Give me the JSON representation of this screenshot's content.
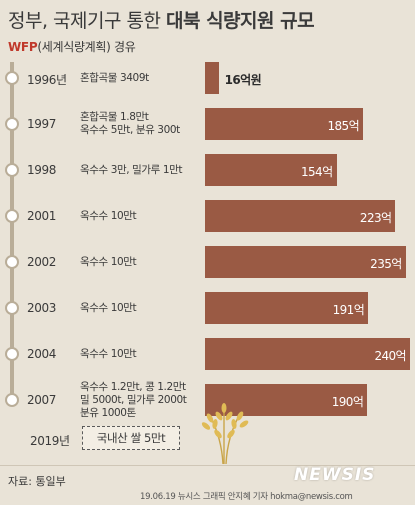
{
  "title_part1": "정부, 국제기구 통한 ",
  "title_part2": "대북 식량지원 규모",
  "subtitle_wfp": "WFP",
  "subtitle_rest": "(세계식량계획) 경유",
  "colors": {
    "background": "#e9e3d7",
    "bar": "#9a5a44",
    "wfp": "#c0392b",
    "timeline": "#b9ad98"
  },
  "chart_data": {
    "type": "bar",
    "orientation": "horizontal",
    "title": "정부, 국제기구 통한 대북 식량지원 규모",
    "subtitle": "WFP(세계식량계획) 경유",
    "unit": "억",
    "categories": [
      "1996년",
      "1997",
      "1998",
      "2001",
      "2002",
      "2003",
      "2004",
      "2007"
    ],
    "values": [
      16,
      185,
      154,
      223,
      235,
      191,
      240,
      190
    ],
    "labels": [
      "16억원",
      "185억",
      "154억",
      "223억",
      "235억",
      "191억",
      "240억",
      "190억"
    ],
    "descriptions": [
      [
        "혼합곡물 3409t"
      ],
      [
        "혼합곡물 1.8만t",
        "옥수수 5만t, 분유 300t"
      ],
      [
        "옥수수 3만, 밀가루 1만t"
      ],
      [
        "옥수수 10만t"
      ],
      [
        "옥수수 10만t"
      ],
      [
        "옥수수 10만t"
      ],
      [
        "옥수수 10만t"
      ],
      [
        "옥수수 1.2만t, 콩 1.2만t",
        "밀 5000t, 밀가루 2000t",
        "분유 1000톤"
      ]
    ],
    "xlim": [
      0,
      240
    ]
  },
  "future": {
    "year": "2019년",
    "plan": "국내산 쌀 5만t"
  },
  "source": "자료: 통일부",
  "logo": "NEWSIS",
  "credit": "19.06.19 뉴시스 그래픽 안지혜 기자 hokma@newsis.com"
}
